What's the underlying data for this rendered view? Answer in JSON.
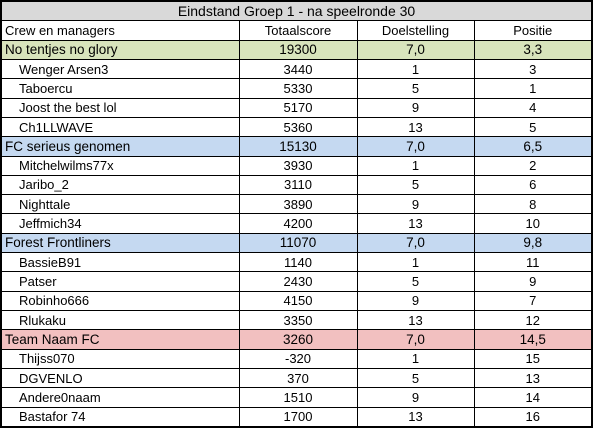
{
  "title": "Eindstand Groep 1 - na speelronde 30",
  "headers": [
    "Crew en managers",
    "Totaalscore",
    "Doelstelling",
    "Positie"
  ],
  "colors": {
    "title_bg": "#d9d9d9",
    "team_green": "#d8e4bc",
    "team_blue": "#c5d9f1",
    "team_pink": "#f2c0c0"
  },
  "rows": [
    {
      "type": "team",
      "color": "#d8e4bc",
      "name": "No tentjes no glory",
      "score": "19300",
      "target": "7,0",
      "pos": "3,3"
    },
    {
      "type": "player",
      "name": "Wenger Arsen3",
      "score": "3440",
      "target": "1",
      "pos": "3"
    },
    {
      "type": "player",
      "name": "Taboercu",
      "score": "5330",
      "target": "5",
      "pos": "1"
    },
    {
      "type": "player",
      "name": "Joost the best lol",
      "score": "5170",
      "target": "9",
      "pos": "4"
    },
    {
      "type": "player",
      "name": "Ch1LLWAVE",
      "score": "5360",
      "target": "13",
      "pos": "5"
    },
    {
      "type": "team",
      "color": "#c5d9f1",
      "name": "FC serieus genomen",
      "score": "15130",
      "target": "7,0",
      "pos": "6,5"
    },
    {
      "type": "player",
      "name": "Mitchelwilms77x",
      "score": "3930",
      "target": "1",
      "pos": "2"
    },
    {
      "type": "player",
      "name": "Jaribo_2",
      "score": "3110",
      "target": "5",
      "pos": "6"
    },
    {
      "type": "player",
      "name": "Nighttale",
      "score": "3890",
      "target": "9",
      "pos": "8"
    },
    {
      "type": "player",
      "name": "Jeffmich34",
      "score": "4200",
      "target": "13",
      "pos": "10"
    },
    {
      "type": "team",
      "color": "#c5d9f1",
      "name": "Forest Frontliners",
      "score": "11070",
      "target": "7,0",
      "pos": "9,8"
    },
    {
      "type": "player",
      "name": "BassieB91",
      "score": "1140",
      "target": "1",
      "pos": "11"
    },
    {
      "type": "player",
      "name": "Patser",
      "score": "2430",
      "target": "5",
      "pos": "9"
    },
    {
      "type": "player",
      "name": "Robinho666",
      "score": "4150",
      "target": "9",
      "pos": "7"
    },
    {
      "type": "player",
      "name": "Rlukaku",
      "score": "3350",
      "target": "13",
      "pos": "12"
    },
    {
      "type": "team",
      "color": "#f2c0c0",
      "name": "Team Naam FC",
      "score": "3260",
      "target": "7,0",
      "pos": "14,5"
    },
    {
      "type": "player",
      "name": "Thijss070",
      "score": "-320",
      "target": "1",
      "pos": "15"
    },
    {
      "type": "player",
      "name": "DGVENLO",
      "score": "370",
      "target": "5",
      "pos": "13"
    },
    {
      "type": "player",
      "name": "Andere0naam",
      "score": "1510",
      "target": "9",
      "pos": "14"
    },
    {
      "type": "player",
      "name": "Bastafor 74",
      "score": "1700",
      "target": "13",
      "pos": "16"
    }
  ]
}
